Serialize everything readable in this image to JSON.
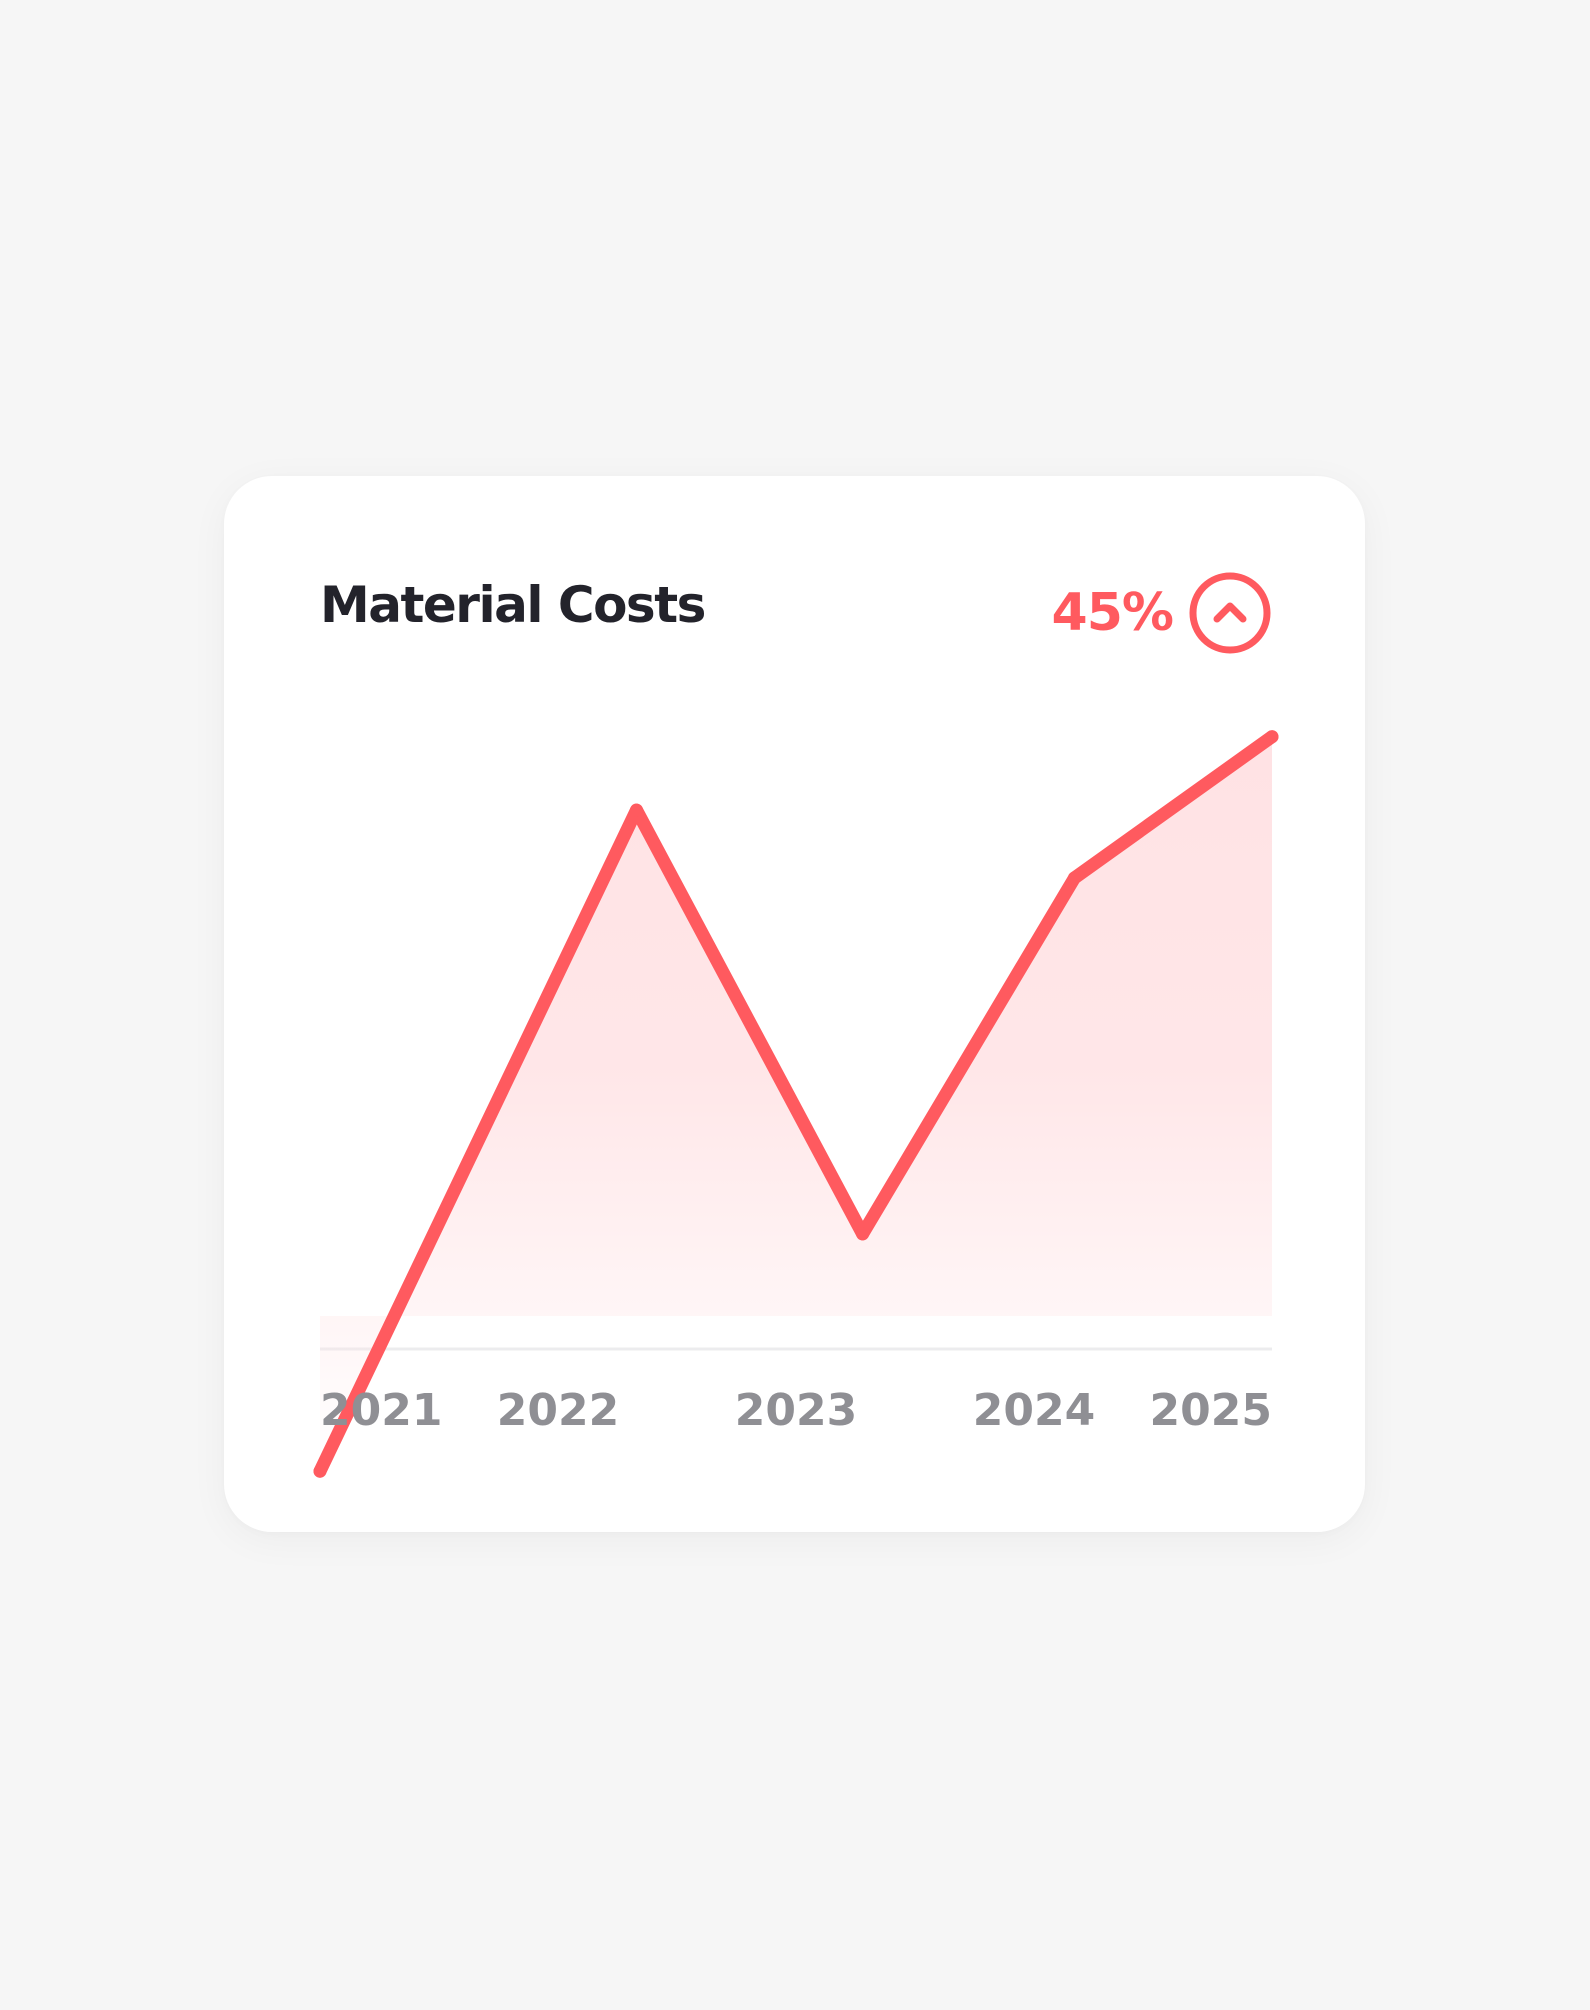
{
  "card": {
    "title": "Material Costs",
    "change": {
      "value": "45%",
      "direction": "up",
      "icon": "chevron-up-circle-icon"
    }
  },
  "colors": {
    "background": "#f6f6f6",
    "card": "#ffffff",
    "accent": "#ff5a5f",
    "area_fill": "#ffe2e4",
    "title": "#23232b",
    "axis_label": "#8f8f94",
    "baseline": "#ececee"
  },
  "chart_data": {
    "type": "area",
    "title": "Material Costs",
    "xlabel": "",
    "ylabel": "",
    "categories": [
      "2021",
      "2022",
      "2023",
      "2024",
      "2025"
    ],
    "series": [
      {
        "x": [
          2021,
          2022.33,
          2023.28,
          2024.17,
          2025
        ],
        "values": [
          16,
          74.5,
          37,
          68.5,
          81
        ]
      }
    ],
    "xlim": [
      2021,
      2025
    ],
    "ylim": [
      0,
      100
    ],
    "y_axis_visible": false,
    "grid": false,
    "legend": "none"
  }
}
